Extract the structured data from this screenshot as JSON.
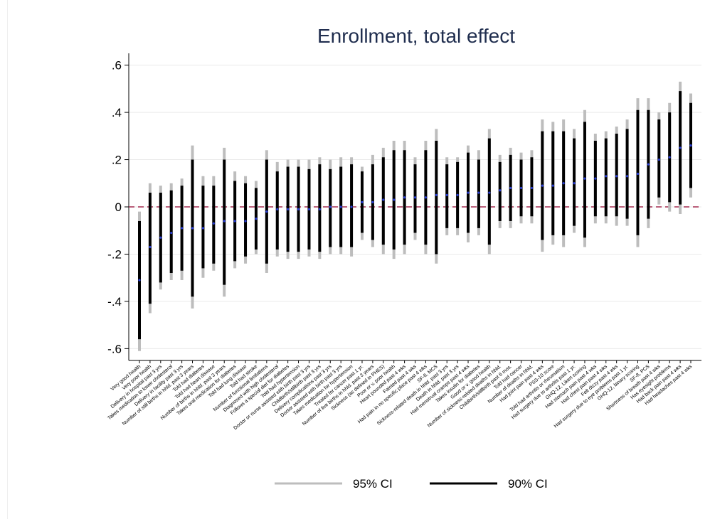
{
  "chart_data": {
    "type": "scatter",
    "title": "Enrollment, total effect",
    "xlabel": "",
    "ylabel": "",
    "ylim": [
      -0.65,
      0.65
    ],
    "yticks": [
      {
        "value": -0.6,
        "label": "-.6"
      },
      {
        "value": -0.4,
        "label": "-.4"
      },
      {
        "value": -0.2,
        "label": "-.2"
      },
      {
        "value": 0,
        "label": "0"
      },
      {
        "value": 0.2,
        "label": ".2"
      },
      {
        "value": 0.4,
        "label": ".4"
      },
      {
        "value": 0.6,
        "label": ".6"
      }
    ],
    "reference_line": {
      "y": 0,
      "color": "#a3284f",
      "style": "dashed"
    },
    "grid": "horizontal",
    "legend_position": "bottom",
    "legend": [
      {
        "label": "95% CI",
        "color": "#bdbdbd"
      },
      {
        "label": "90% CI",
        "color": "#000000"
      }
    ],
    "point_color": "#2a3fd6",
    "points": [
      {
        "label": "Very good health",
        "est": -0.31,
        "lo95": -0.61,
        "hi95": -0.02,
        "lo90": -0.56,
        "hi90": -0.06
      },
      {
        "label": "Very poor health",
        "est": -0.17,
        "lo95": -0.45,
        "hi95": 0.1,
        "lo90": -0.41,
        "hi90": 0.06
      },
      {
        "label": "Delivery in hospital past 3 yrs",
        "est": -0.13,
        "lo95": -0.35,
        "hi95": 0.09,
        "lo90": -0.32,
        "hi90": 0.06
      },
      {
        "label": "Takes medication to lower cholesterol",
        "est": -0.11,
        "lo95": -0.31,
        "hi95": 0.1,
        "lo90": -0.28,
        "hi90": 0.07
      },
      {
        "label": "Delivery in facility past 3 yrs",
        "est": -0.09,
        "lo95": -0.31,
        "hi95": 0.12,
        "lo90": -0.27,
        "hi90": 0.09
      },
      {
        "label": "Number of still births in hhld. past 3 years",
        "est": -0.09,
        "lo95": -0.43,
        "hi95": 0.26,
        "lo90": -0.38,
        "hi90": 0.2
      },
      {
        "label": "Told had diabetes",
        "est": -0.09,
        "lo95": -0.3,
        "hi95": 0.13,
        "lo90": -0.26,
        "hi90": 0.09
      },
      {
        "label": "Told had heart disease",
        "est": -0.07,
        "lo95": -0.27,
        "hi95": 0.13,
        "lo90": -0.24,
        "hi90": 0.09
      },
      {
        "label": "Number of births in hhld. past 3 years",
        "est": -0.06,
        "lo95": -0.38,
        "hi95": 0.25,
        "lo90": -0.33,
        "hi90": 0.2
      },
      {
        "label": "Takes oral medication for diabetes",
        "est": -0.06,
        "lo95": -0.26,
        "hi95": 0.15,
        "lo90": -0.23,
        "hi90": 0.11
      },
      {
        "label": "Told had lung disease",
        "est": -0.06,
        "lo95": -0.24,
        "hi95": 0.13,
        "lo90": -0.21,
        "hi90": 0.1
      },
      {
        "label": "Told had stroke",
        "est": -0.05,
        "lo95": -0.2,
        "hi95": 0.11,
        "lo90": -0.18,
        "hi90": 0.08
      },
      {
        "label": "Number of functional limitations",
        "est": -0.02,
        "lo95": -0.28,
        "hi95": 0.24,
        "lo90": -0.24,
        "hi90": 0.2
      },
      {
        "label": "Diagnosed with high cholesterol",
        "est": -0.01,
        "lo95": -0.21,
        "hi95": 0.19,
        "lo90": -0.18,
        "hi90": 0.15
      },
      {
        "label": "Follows a special diet for diabetes",
        "est": -0.01,
        "lo95": -0.22,
        "hi95": 0.2,
        "lo90": -0.19,
        "hi90": 0.17
      },
      {
        "label": "Told had hypertension",
        "est": -0.01,
        "lo95": -0.22,
        "hi95": 0.2,
        "lo90": -0.19,
        "hi90": 0.17
      },
      {
        "label": "Doctor or nurse assisted with birth past 3 yrs",
        "est": -0.01,
        "lo95": -0.21,
        "hi95": 0.2,
        "lo90": -0.18,
        "hi90": 0.16
      },
      {
        "label": "Childbirth/stillbirth past 3 yrs",
        "est": -0.01,
        "lo95": -0.22,
        "hi95": 0.21,
        "lo90": -0.19,
        "hi90": 0.18
      },
      {
        "label": "Delivery complications past 3 yrs",
        "est": 0.0,
        "lo95": -0.2,
        "hi95": 0.2,
        "lo90": -0.17,
        "hi90": 0.16
      },
      {
        "label": "Doctor assisted with birth past 3 yrs",
        "est": 0.0,
        "lo95": -0.2,
        "hi95": 0.21,
        "lo90": -0.17,
        "hi90": 0.17
      },
      {
        "label": "Takes medication for hypertension",
        "est": 0.0,
        "lo95": -0.21,
        "hi95": 0.21,
        "lo90": -0.17,
        "hi90": 0.18
      },
      {
        "label": "Treated for cancer past 1 yr.",
        "est": 0.02,
        "lo95": -0.14,
        "hi95": 0.17,
        "lo90": -0.11,
        "hi90": 0.15
      },
      {
        "label": "Number of live births in hhld. past 3 years",
        "est": 0.02,
        "lo95": -0.17,
        "hi95": 0.22,
        "lo90": -0.14,
        "hi90": 0.18
      },
      {
        "label": "Sickness (as defined in PHES)",
        "est": 0.03,
        "lo95": -0.2,
        "hi95": 0.25,
        "lo90": -0.16,
        "hi90": 0.21
      },
      {
        "label": "Poor or v. poor health",
        "est": 0.03,
        "lo95": -0.22,
        "hi95": 0.28,
        "lo90": -0.18,
        "hi90": 0.24
      },
      {
        "label": "Heart pounded past 4 wks",
        "est": 0.04,
        "lo95": -0.2,
        "hi95": 0.28,
        "lo90": -0.16,
        "hi90": 0.24
      },
      {
        "label": "Fainted past 4 wks",
        "est": 0.04,
        "lo95": -0.14,
        "hi95": 0.21,
        "lo90": -0.11,
        "hi90": 0.18
      },
      {
        "label": "Had pain in no specific place past 4 wks",
        "est": 0.04,
        "lo95": -0.2,
        "hi95": 0.28,
        "lo90": -0.16,
        "hi90": 0.24
      },
      {
        "label": "SF-8, MCS",
        "est": 0.05,
        "lo95": -0.24,
        "hi95": 0.33,
        "lo90": -0.2,
        "hi90": 0.28
      },
      {
        "label": "Sickness-related death in hhld. past 3 yrs",
        "est": 0.05,
        "lo95": -0.12,
        "hi95": 0.21,
        "lo90": -0.09,
        "hi90": 0.18
      },
      {
        "label": "Death in hhld. past 3 yrs",
        "est": 0.05,
        "lo95": -0.12,
        "hi95": 0.21,
        "lo90": -0.09,
        "hi90": 0.19
      },
      {
        "label": "Had menstrual cramps past 4 wks",
        "est": 0.06,
        "lo95": -0.15,
        "hi95": 0.26,
        "lo90": -0.11,
        "hi90": 0.23
      },
      {
        "label": "Takes insulin for diabetes",
        "est": 0.06,
        "lo95": -0.12,
        "hi95": 0.24,
        "lo90": -0.09,
        "hi90": 0.2
      },
      {
        "label": "Good or v. good health",
        "est": 0.06,
        "lo95": -0.2,
        "hi95": 0.33,
        "lo90": -0.16,
        "hi90": 0.29
      },
      {
        "label": "Number of sickness-related deaths in hhld.",
        "est": 0.07,
        "lo95": -0.09,
        "hi95": 0.22,
        "lo90": -0.06,
        "hi90": 0.19
      },
      {
        "label": "Childbirth/stillbirth past 6 mos.",
        "est": 0.08,
        "lo95": -0.09,
        "hi95": 0.25,
        "lo90": -0.06,
        "hi90": 0.22
      },
      {
        "label": "Told had cancer",
        "est": 0.08,
        "lo95": -0.07,
        "hi95": 0.23,
        "lo90": -0.04,
        "hi90": 0.2
      },
      {
        "label": "Number of deaths in hhld.",
        "est": 0.08,
        "lo95": -0.07,
        "hi95": 0.24,
        "lo90": -0.04,
        "hi90": 0.21
      },
      {
        "label": "Had joint pain past 4 wks",
        "est": 0.09,
        "lo95": -0.19,
        "hi95": 0.37,
        "lo90": -0.14,
        "hi90": 0.32
      },
      {
        "label": "PSS-10 score",
        "est": 0.09,
        "lo95": -0.16,
        "hi95": 0.36,
        "lo90": -0.12,
        "hi90": 0.32
      },
      {
        "label": "Told had arthritis or rheumatism",
        "est": 0.1,
        "lo95": -0.17,
        "hi95": 0.37,
        "lo90": -0.12,
        "hi90": 0.32
      },
      {
        "label": "Had surgery due to arthritis past 1 yr.",
        "est": 0.1,
        "lo95": -0.11,
        "hi95": 0.33,
        "lo90": -0.08,
        "hi90": 0.29
      },
      {
        "label": "GHQ-12, Likert scoring",
        "est": 0.12,
        "lo95": -0.17,
        "hi95": 0.41,
        "lo90": -0.13,
        "hi90": 0.36
      },
      {
        "label": "Had stomach pain past 4 wks",
        "est": 0.12,
        "lo95": -0.07,
        "hi95": 0.31,
        "lo90": -0.04,
        "hi90": 0.28
      },
      {
        "label": "Had chest pain past 4 wks",
        "est": 0.13,
        "lo95": -0.07,
        "hi95": 0.32,
        "lo90": -0.04,
        "hi90": 0.29
      },
      {
        "label": "Felt dizzy past 4 wks",
        "est": 0.13,
        "lo95": -0.08,
        "hi95": 0.34,
        "lo90": -0.04,
        "hi90": 0.31
      },
      {
        "label": "Had surgery due to eye problems past 1 yr.",
        "est": 0.13,
        "lo95": -0.08,
        "hi95": 0.37,
        "lo90": -0.05,
        "hi90": 0.33
      },
      {
        "label": "GHQ-12, binary scoring",
        "est": 0.14,
        "lo95": -0.17,
        "hi95": 0.46,
        "lo90": -0.12,
        "hi90": 0.41
      },
      {
        "label": "SF-8, PCS",
        "est": 0.18,
        "lo95": -0.09,
        "hi95": 0.46,
        "lo90": -0.05,
        "hi90": 0.41
      },
      {
        "label": "Shortness of breath past 4 wks",
        "est": 0.2,
        "lo95": 0.01,
        "hi95": 0.4,
        "lo90": 0.04,
        "hi90": 0.37
      },
      {
        "label": "Has eyesight problems",
        "est": 0.21,
        "lo95": -0.02,
        "hi95": 0.44,
        "lo90": 0.02,
        "hi90": 0.4
      },
      {
        "label": "Had back pain past 4 wks",
        "est": 0.25,
        "lo95": -0.03,
        "hi95": 0.53,
        "lo90": 0.01,
        "hi90": 0.49
      },
      {
        "label": "Had headaches past 4 wks",
        "est": 0.26,
        "lo95": 0.04,
        "hi95": 0.48,
        "lo90": 0.08,
        "hi90": 0.44
      }
    ]
  }
}
